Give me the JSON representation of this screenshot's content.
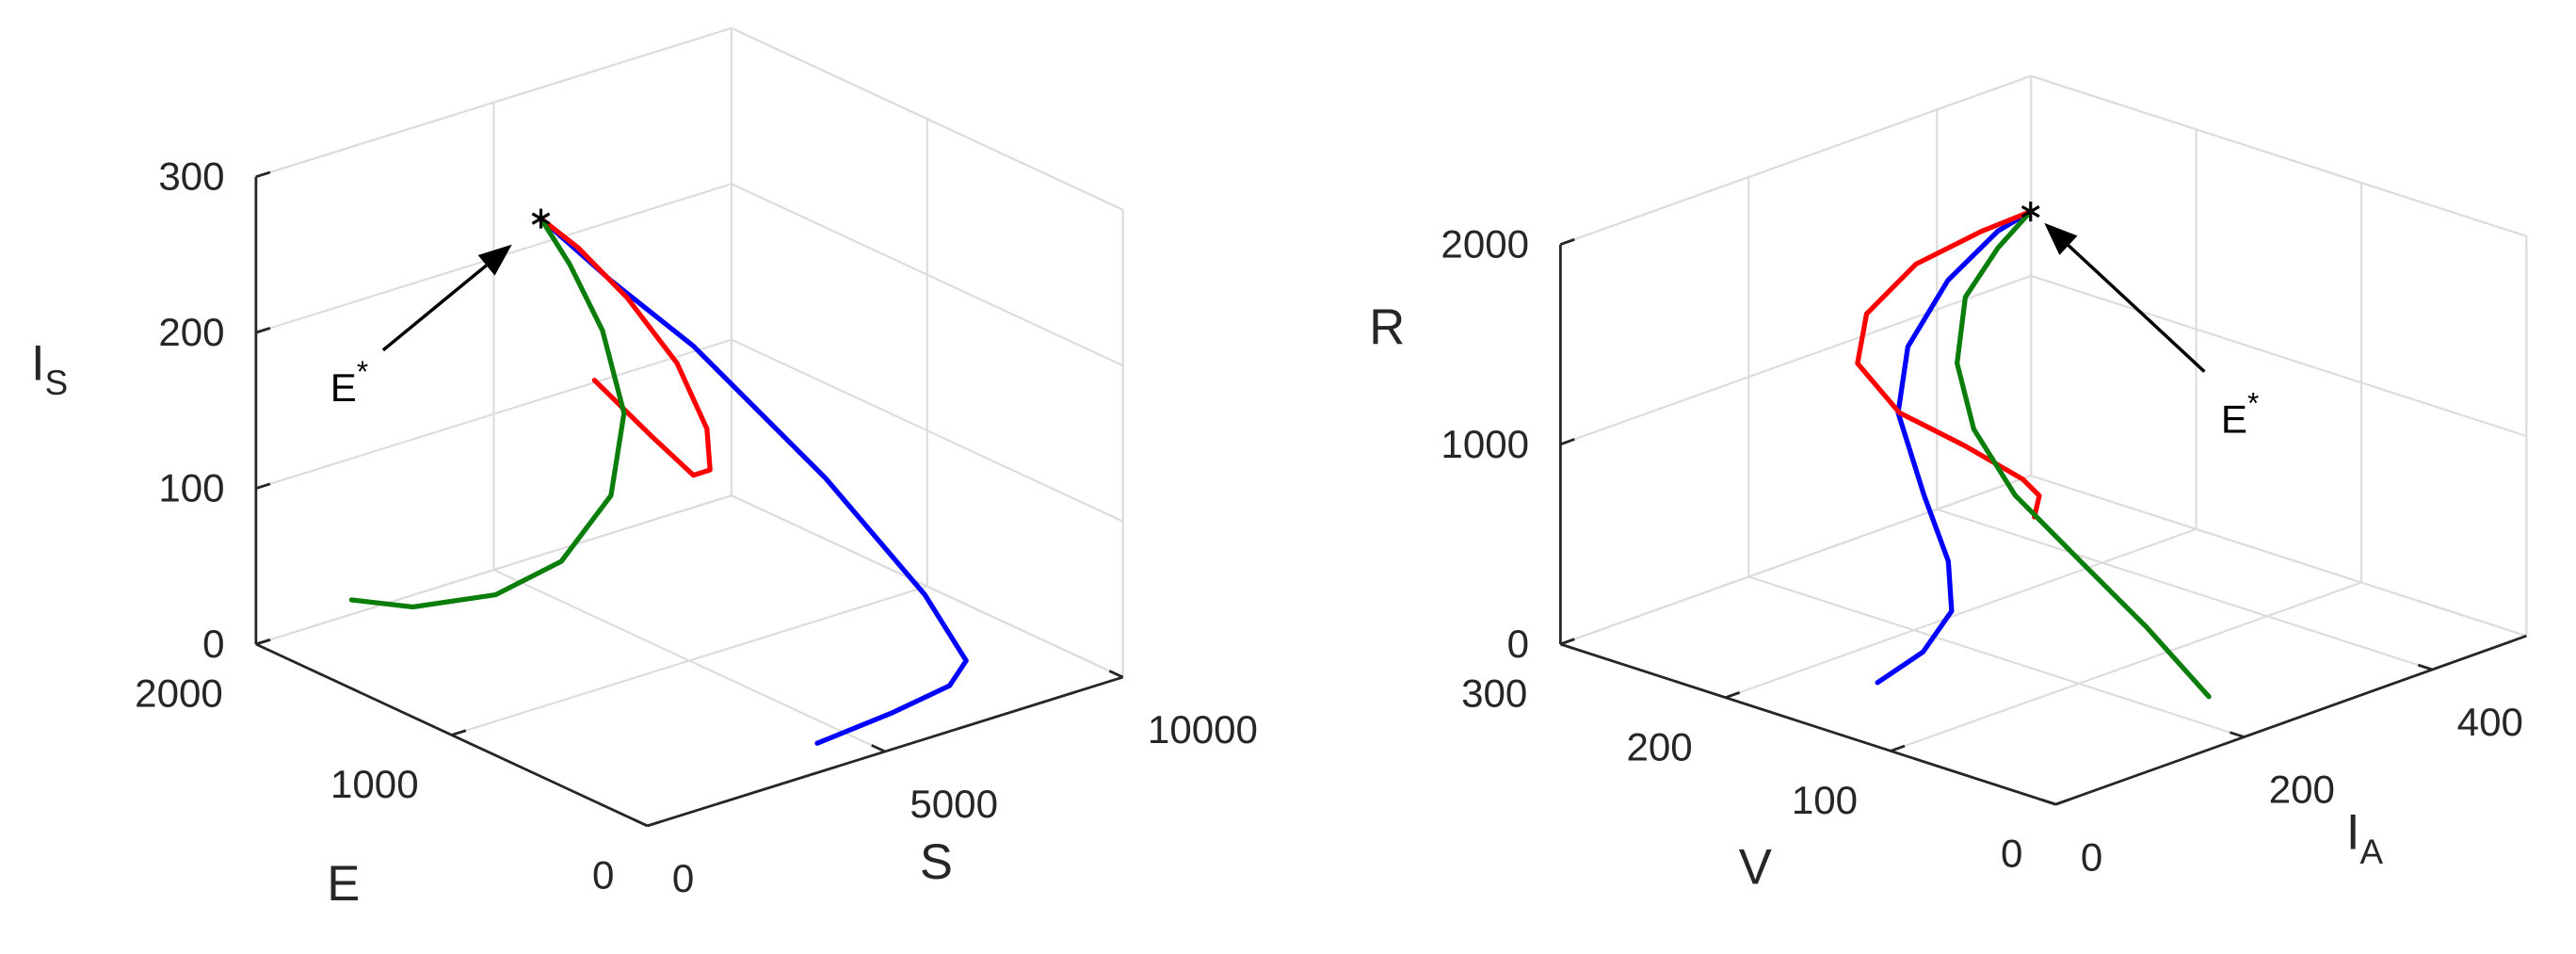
{
  "chart_data": [
    {
      "type": "line3d",
      "xlabel": {
        "text": "S"
      },
      "ylabel": {
        "text": "E"
      },
      "zlabel": {
        "text": "I",
        "sub": "S"
      },
      "xlim": [
        0,
        10000
      ],
      "ylim": [
        0,
        2000
      ],
      "zlim": [
        0,
        300
      ],
      "xticks": [
        0,
        5000,
        10000
      ],
      "yticks": [
        0,
        1000,
        2000
      ],
      "zticks": [
        0,
        100,
        200,
        300
      ],
      "grid": true,
      "series": [
        {
          "color": "#0000ff",
          "x": [
            4370,
            6125,
            7590,
            8350,
            7890,
            6630,
            4920,
            3760,
            2700
          ],
          "y": [
            194,
            240,
            300,
            400,
            500,
            700,
            960,
            1100,
            1200
          ],
          "z": [
            0,
            0,
            0,
            3,
            44,
            119,
            205,
            250,
            294
          ]
        },
        {
          "color": "#ff0000",
          "x": [
            4650,
            5700,
            6400,
            6670,
            6520,
            5810,
            4680,
            3560,
            2700
          ],
          "y": [
            1400,
            1360,
            1320,
            1300,
            1280,
            1260,
            1240,
            1220,
            1200
          ],
          "z": [
            160,
            116,
            87,
            89,
            118,
            168,
            222,
            266,
            294
          ]
        },
        {
          "color": "#0a7d0a",
          "x": [
            1600,
            2640,
            3970,
            4940,
            5490,
            5270,
            4490,
            3470,
            2700
          ],
          "y": [
            1900,
            1840,
            1740,
            1640,
            1520,
            1400,
            1320,
            1240,
            1200
          ],
          "z": [
            19,
            8,
            9,
            27,
            71,
            133,
            198,
            255,
            294
          ]
        }
      ],
      "equilibrium": {
        "x": 2700,
        "y": 1200,
        "z": 294
      },
      "annotation": {
        "text": "E",
        "sup": "*"
      }
    },
    {
      "type": "line3d",
      "xlabel": {
        "text": "I",
        "sub": "A"
      },
      "ylabel": {
        "text": "V"
      },
      "zlabel": {
        "text": "R"
      },
      "xlim": [
        0,
        500
      ],
      "ylim": [
        0,
        300
      ],
      "zlim": [
        0,
        2000
      ],
      "xticks": [
        0,
        200,
        400
      ],
      "yticks": [
        0,
        100,
        200,
        300
      ],
      "zticks": [
        0,
        1000,
        2000
      ],
      "grid": true,
      "series": [
        {
          "color": "#0000ff",
          "x": [
            100,
            152,
            184,
            184,
            160,
            136,
            148,
            194,
            249,
            289
          ],
          "y": [
            165,
            167,
            168,
            170,
            171,
            173,
            174,
            176,
            177,
            180
          ],
          "z": [
            0,
            60,
            208,
            452,
            820,
            1268,
            1576,
            1824,
            1976,
            1998
          ]
        },
        {
          "color": "#ff0000",
          "x": [
            372,
            372,
            349,
            277,
            197,
            142,
            141,
            183,
            242,
            289
          ],
          "y": [
            225,
            222,
            219,
            213,
            207,
            201,
            195,
            189,
            183,
            180
          ],
          "z": [
            210,
            324,
            454,
            758,
            1074,
            1430,
            1696,
            1890,
            1970,
            1998
          ]
        },
        {
          "color": "#0a7d0a",
          "x": [
            245,
            202,
            158,
            125,
            118,
            132,
            167,
            228,
            289
          ],
          "y": [
            47,
            60,
            75,
            96,
            117,
            135,
            150,
            165,
            180
          ],
          "z": [
            0,
            384,
            748,
            1080,
            1366,
            1624,
            1856,
            1960,
            1998
          ]
        }
      ],
      "equilibrium": {
        "x": 289,
        "y": 180,
        "z": 1998
      },
      "annotation": {
        "text": "E",
        "sup": "*"
      }
    }
  ]
}
